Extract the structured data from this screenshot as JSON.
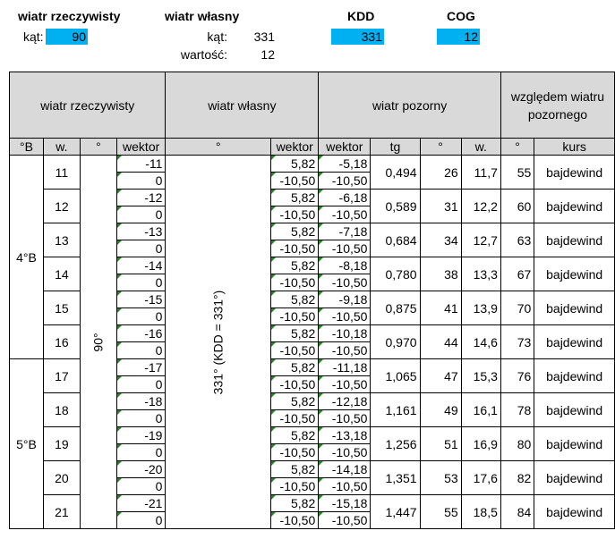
{
  "top": {
    "true_wind": {
      "title": "wiatr rzeczywisty",
      "angle_label": "kąt:",
      "angle_value": "90"
    },
    "own_wind": {
      "title": "wiatr własny",
      "angle_label": "kąt:",
      "angle_value": "331",
      "value_label": "wartość:",
      "value_value": "12"
    },
    "kdd": {
      "title": "KDD",
      "value": "331"
    },
    "cog": {
      "title": "COG",
      "value": "12"
    }
  },
  "table": {
    "group_headers": {
      "true_wind": "wiatr rzeczywisty",
      "own_wind": "wiatr własny",
      "apparent_wind": "wiatr pozorny",
      "relative_line1": "względem wiatru",
      "relative_line2": "pozornego"
    },
    "columns": [
      "°B",
      "w.",
      "°",
      "wektor",
      "°",
      "wektor",
      "wektor",
      "tg",
      "°",
      "w.",
      "°",
      "kurs"
    ],
    "true_direction": "90°",
    "own_direction": "331° (KDD = 331°)",
    "groups": [
      {
        "label": "4°B",
        "rows": [
          {
            "w": "11",
            "v1a": "-11",
            "v1b": "0",
            "v2a": "5,82",
            "v2b": "-10,50",
            "v3a": "-5,18",
            "v3b": "-10,50",
            "tg": "0,494",
            "deg": "26",
            "ws": "11,7",
            "rel": "55",
            "kurs": "bajdewind"
          },
          {
            "w": "12",
            "v1a": "-12",
            "v1b": "0",
            "v2a": "5,82",
            "v2b": "-10,50",
            "v3a": "-6,18",
            "v3b": "-10,50",
            "tg": "0,589",
            "deg": "31",
            "ws": "12,2",
            "rel": "60",
            "kurs": "bajdewind"
          },
          {
            "w": "13",
            "v1a": "-13",
            "v1b": "0",
            "v2a": "5,82",
            "v2b": "-10,50",
            "v3a": "-7,18",
            "v3b": "-10,50",
            "tg": "0,684",
            "deg": "34",
            "ws": "12,7",
            "rel": "63",
            "kurs": "bajdewind"
          },
          {
            "w": "14",
            "v1a": "-14",
            "v1b": "0",
            "v2a": "5,82",
            "v2b": "-10,50",
            "v3a": "-8,18",
            "v3b": "-10,50",
            "tg": "0,780",
            "deg": "38",
            "ws": "13,3",
            "rel": "67",
            "kurs": "bajdewind"
          },
          {
            "w": "15",
            "v1a": "-15",
            "v1b": "0",
            "v2a": "5,82",
            "v2b": "-10,50",
            "v3a": "-9,18",
            "v3b": "-10,50",
            "tg": "0,875",
            "deg": "41",
            "ws": "13,9",
            "rel": "70",
            "kurs": "bajdewind"
          },
          {
            "w": "16",
            "v1a": "-16",
            "v1b": "0",
            "v2a": "5,82",
            "v2b": "-10,50",
            "v3a": "-10,18",
            "v3b": "-10,50",
            "tg": "0,970",
            "deg": "44",
            "ws": "14,6",
            "rel": "73",
            "kurs": "bajdewind"
          }
        ]
      },
      {
        "label": "5°B",
        "rows": [
          {
            "w": "17",
            "v1a": "-17",
            "v1b": "0",
            "v2a": "5,82",
            "v2b": "-10,50",
            "v3a": "-11,18",
            "v3b": "-10,50",
            "tg": "1,065",
            "deg": "47",
            "ws": "15,3",
            "rel": "76",
            "kurs": "bajdewind"
          },
          {
            "w": "18",
            "v1a": "-18",
            "v1b": "0",
            "v2a": "5,82",
            "v2b": "-10,50",
            "v3a": "-12,18",
            "v3b": "-10,50",
            "tg": "1,161",
            "deg": "49",
            "ws": "16,1",
            "rel": "78",
            "kurs": "bajdewind"
          },
          {
            "w": "19",
            "v1a": "-19",
            "v1b": "0",
            "v2a": "5,82",
            "v2b": "-10,50",
            "v3a": "-13,18",
            "v3b": "-10,50",
            "tg": "1,256",
            "deg": "51",
            "ws": "16,9",
            "rel": "80",
            "kurs": "bajdewind"
          },
          {
            "w": "20",
            "v1a": "-20",
            "v1b": "0",
            "v2a": "5,82",
            "v2b": "-10,50",
            "v3a": "-14,18",
            "v3b": "-10,50",
            "tg": "1,351",
            "deg": "53",
            "ws": "17,6",
            "rel": "82",
            "kurs": "bajdewind"
          },
          {
            "w": "21",
            "v1a": "-21",
            "v1b": "0",
            "v2a": "5,82",
            "v2b": "-10,50",
            "v3a": "-15,18",
            "v3b": "-10,50",
            "tg": "1,447",
            "deg": "55",
            "ws": "18,5",
            "rel": "84",
            "kurs": "bajdewind"
          }
        ]
      }
    ]
  },
  "colors": {
    "input_cell": "#00b0f0",
    "header_fill": "#d9d9d9",
    "formula_marker": "#1e8c1e"
  }
}
